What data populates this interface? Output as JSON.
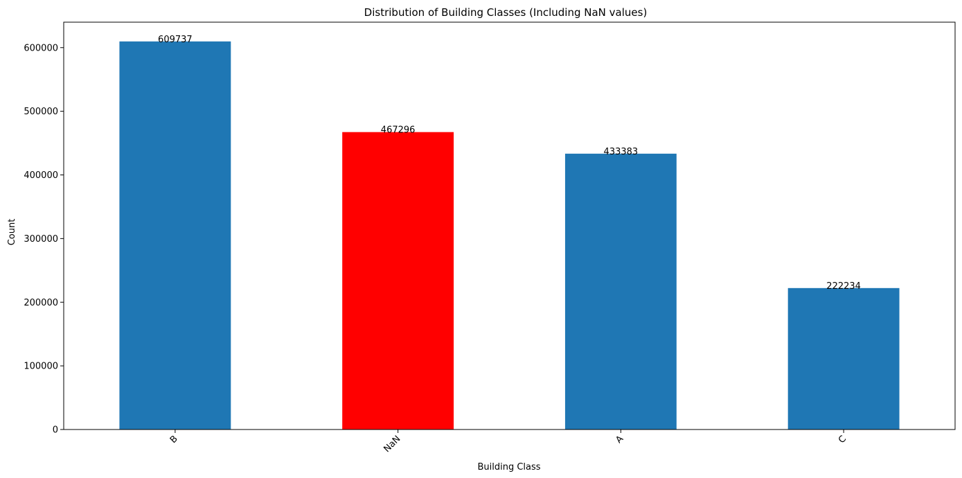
{
  "chart_data": {
    "type": "bar",
    "title": "Distribution of Building Classes (Including NaN values)",
    "xlabel": "Building Class",
    "ylabel": "Count",
    "categories": [
      "B",
      "NaN",
      "A",
      "C"
    ],
    "values": [
      609737,
      467296,
      433383,
      222234
    ],
    "data_labels": [
      "609737",
      "467296",
      "433383",
      "222234"
    ],
    "bar_colors": [
      "#1f77b4",
      "#ff0000",
      "#1f77b4",
      "#1f77b4"
    ],
    "ylim": [
      0,
      640000
    ],
    "yticks": [
      0,
      100000,
      200000,
      300000,
      400000,
      500000,
      600000
    ],
    "ytick_labels": [
      "0",
      "100000",
      "200000",
      "300000",
      "400000",
      "500000",
      "600000"
    ],
    "xtick_rotation": "45 degrees",
    "grid": false,
    "legend": "none"
  }
}
